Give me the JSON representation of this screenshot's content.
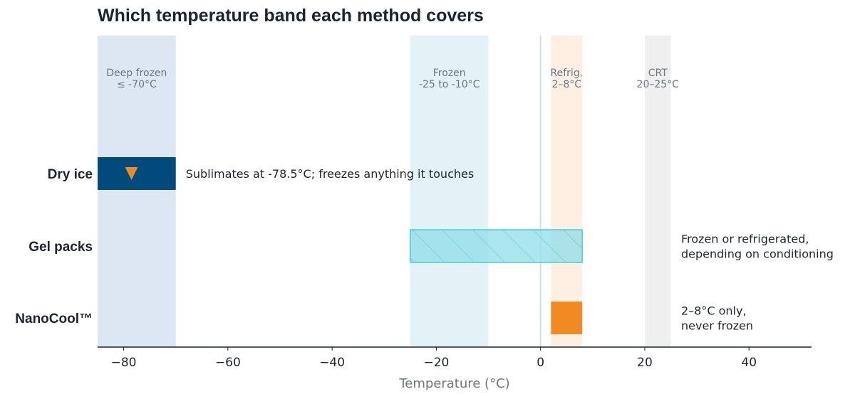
{
  "title": "Which temperature band each method covers",
  "chart_data": {
    "type": "bar",
    "orientation": "horizontal-range",
    "title": "Which temperature band each method covers",
    "xlabel": "Temperature (°C)",
    "ylabel": "",
    "xlim": [
      -85,
      52
    ],
    "xticks": [
      -80,
      -60,
      -40,
      -20,
      0,
      20,
      40
    ],
    "xtick_labels": [
      "−80",
      "−60",
      "−40",
      "−20",
      "0",
      "20",
      "40"
    ],
    "zero_line": 0,
    "bands": [
      {
        "line1": "Deep frozen",
        "line2": "≤ -70°C",
        "from": -85,
        "to": -70,
        "color": "#dce7f3"
      },
      {
        "line1": "Frozen",
        "line2": "-25 to -10°C",
        "from": -25,
        "to": -10,
        "color": "#e3f2f7"
      },
      {
        "line1": "Refrig.",
        "line2": "2–8°C",
        "from": 2,
        "to": 8,
        "color": "#fdf0e3"
      },
      {
        "line1": "CRT",
        "line2": "20–25°C",
        "from": 20,
        "to": 25,
        "color": "#efefef"
      }
    ],
    "methods": [
      {
        "label": "Dry ice",
        "from": -85,
        "to": -70,
        "color": "#004a7c",
        "style": "solid",
        "marker": {
          "x": -78.5,
          "color": "#f28a24"
        },
        "annotation_lines": [
          "Sublimates at -78.5°C; freezes anything it touches"
        ],
        "annotation_pos": "right-of-bar"
      },
      {
        "label": "Gel packs",
        "from": -25,
        "to": 8,
        "color": "#8fdde8",
        "style": "hatched",
        "annotation_lines": [
          "Frozen or refrigerated,",
          "depending on conditioning"
        ],
        "annotation_pos": "right"
      },
      {
        "label": "NanoCool™",
        "from": 2,
        "to": 8,
        "color": "#f28a24",
        "style": "solid",
        "annotation_lines": [
          "2–8°C only,",
          "never frozen"
        ],
        "annotation_pos": "right"
      }
    ]
  }
}
